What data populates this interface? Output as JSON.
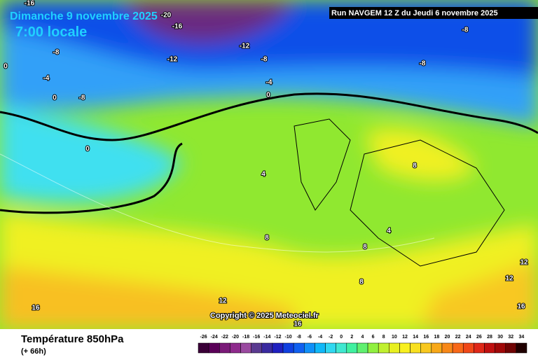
{
  "header": {
    "date": "Dimanche 9 novembre 2025",
    "time": "7:00 locale",
    "run": "Run NAVGEM 12 Z du Jeudi 6 novembre 2025"
  },
  "map": {
    "copyright": "Copyright © 2025 Meteociel.fr",
    "contour_labels": [
      "-16",
      "-20",
      "-16",
      "-12",
      "-12",
      "-8",
      "-8",
      "-8",
      "-8",
      "0",
      "-4",
      "-8",
      "0",
      "-4",
      "0",
      "0",
      "4",
      "8",
      "8",
      "4",
      "8",
      "8",
      "12",
      "12",
      "12",
      "16",
      "16",
      "16"
    ]
  },
  "footer": {
    "title": "Température 850hPa",
    "lead": "(+ 66h)"
  },
  "legend": {
    "ticks": [
      -26,
      -24,
      -22,
      -20,
      -18,
      -16,
      -14,
      -12,
      -10,
      -8,
      -6,
      -4,
      -2,
      0,
      2,
      4,
      6,
      8,
      10,
      12,
      14,
      16,
      18,
      20,
      22,
      24,
      26,
      28,
      30,
      32,
      34
    ],
    "colors": [
      "#3a0038",
      "#5a0058",
      "#7a1a78",
      "#8e2a8c",
      "#9a4aa0",
      "#5a3a90",
      "#3a2aa0",
      "#2020c0",
      "#1040e0",
      "#1060f0",
      "#1090f8",
      "#10b8f8",
      "#30d8f0",
      "#40e8d0",
      "#40f0a0",
      "#60f070",
      "#90f040",
      "#c0f030",
      "#e8f020",
      "#f8f020",
      "#f8e020",
      "#f8c820",
      "#f8a818",
      "#f88818",
      "#f86818",
      "#f04818",
      "#e02818",
      "#c01010",
      "#a00808",
      "#700404",
      "#200000"
    ]
  }
}
